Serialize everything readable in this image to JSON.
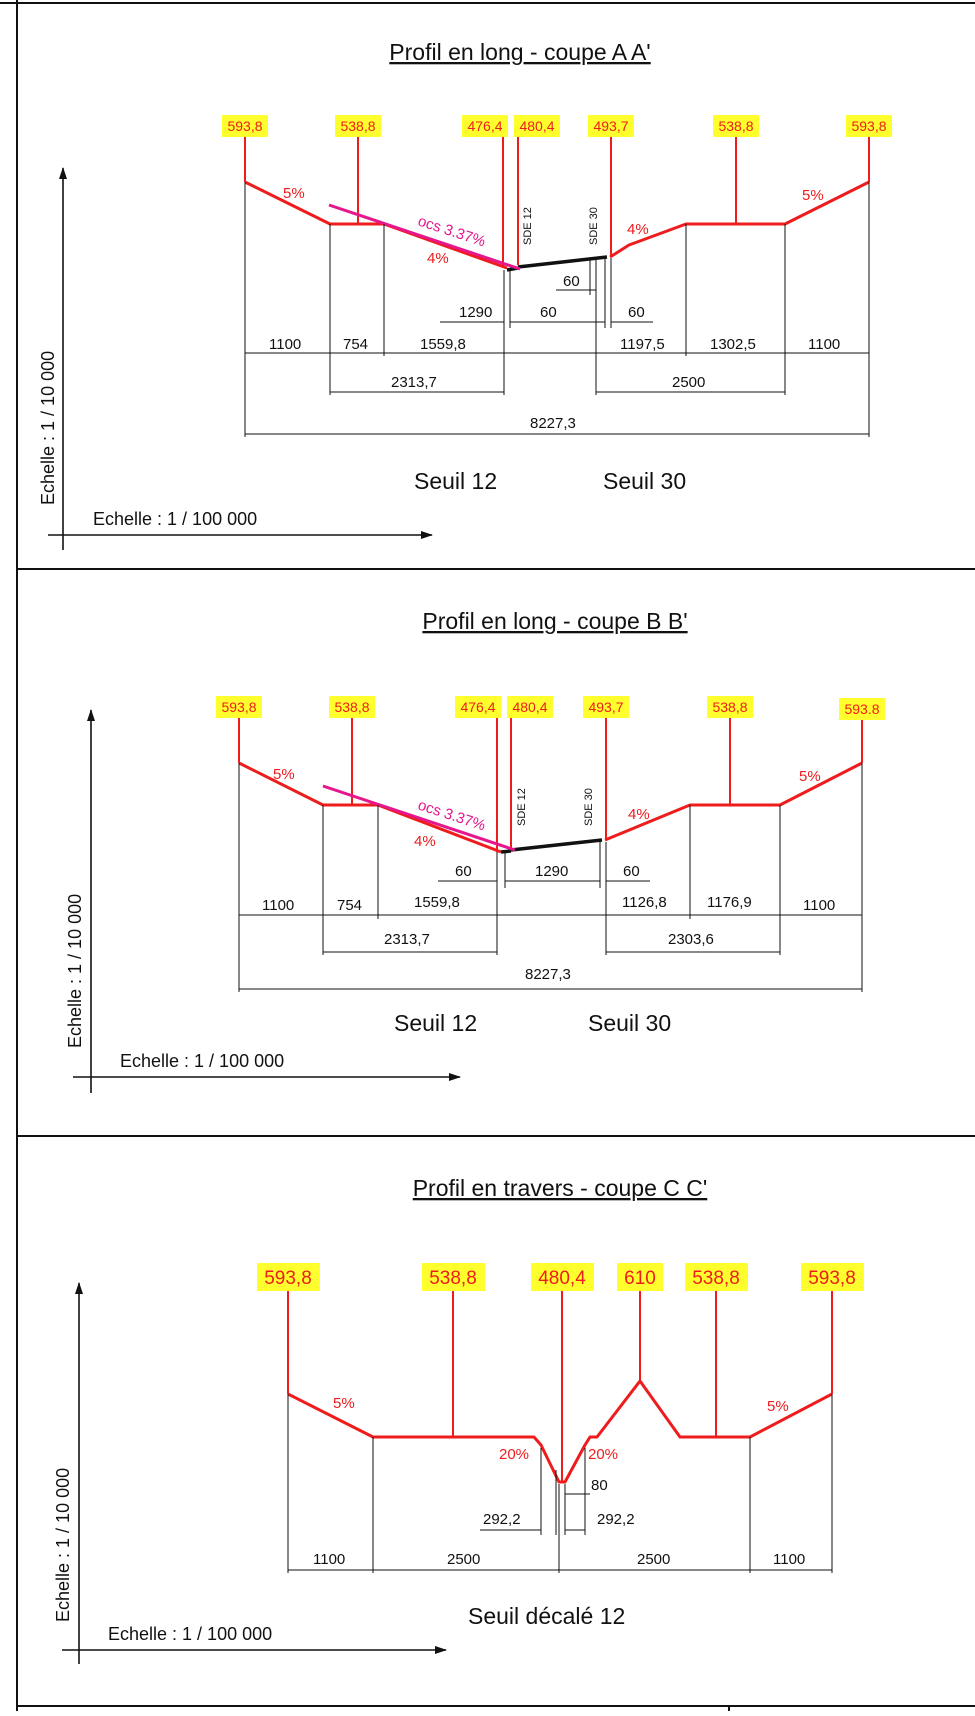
{
  "panels": [
    {
      "title": "Profil en long - coupe A A'",
      "scale_vertical": "Echelle : 1 / 10 000",
      "scale_horizontal": "Echelle : 1 / 100 000",
      "elevations": [
        "593,8",
        "538,8",
        "476,4",
        "480,4",
        "493,7",
        "538,8",
        "593,8"
      ],
      "slopes": [
        "5%",
        "4%",
        "4%",
        "5%"
      ],
      "ocs": "ocs 3.37%",
      "sde": [
        "SDE 12",
        "SDE 30"
      ],
      "dims_inner": [
        "60",
        "1290",
        "60",
        "60"
      ],
      "dims_row1": [
        "1100",
        "754",
        "1559,8",
        "1197,5",
        "1302,5",
        "1100"
      ],
      "dims_row2": [
        "2313,7",
        "2500"
      ],
      "dims_total": "8227,3",
      "labels": [
        "Seuil 12",
        "Seuil 30"
      ]
    },
    {
      "title": "Profil en long - coupe B B'",
      "scale_vertical": "Echelle : 1 / 10 000",
      "scale_horizontal": "Echelle : 1 / 100 000",
      "elevations": [
        "593,8",
        "538,8",
        "476,4",
        "480,4",
        "493,7",
        "538,8",
        "593.8"
      ],
      "slopes": [
        "5%",
        "4%",
        "4%",
        "5%"
      ],
      "ocs": "ocs 3.37%",
      "sde": [
        "SDE 12",
        "SDE 30"
      ],
      "dims_inner": [
        "60",
        "1290",
        "60"
      ],
      "dims_row1": [
        "1100",
        "754",
        "1559,8",
        "1126,8",
        "1176,9",
        "1100"
      ],
      "dims_row2": [
        "2313,7",
        "2303,6"
      ],
      "dims_total": "8227,3",
      "labels": [
        "Seuil 12",
        "Seuil 30"
      ]
    },
    {
      "title": "Profil en travers - coupe C C'",
      "scale_vertical": "Echelle : 1 / 10 000",
      "scale_horizontal": "Echelle : 1 / 100 000",
      "elevations": [
        "593,8",
        "538,8",
        "480,4",
        "610",
        "538,8",
        "593,8"
      ],
      "slopes": [
        "5%",
        "20%",
        "20%",
        "5%"
      ],
      "dims_inner": [
        "80",
        "292,2",
        "292,2"
      ],
      "dims_row1": [
        "1100",
        "2500",
        "2500",
        "1100"
      ],
      "labels": [
        "Seuil décalé 12"
      ]
    }
  ],
  "colors": {
    "profile": "#ee1c1c",
    "ocs": "#e6168c",
    "elevation_highlight": "#ffff2e",
    "ink": "#111111"
  }
}
